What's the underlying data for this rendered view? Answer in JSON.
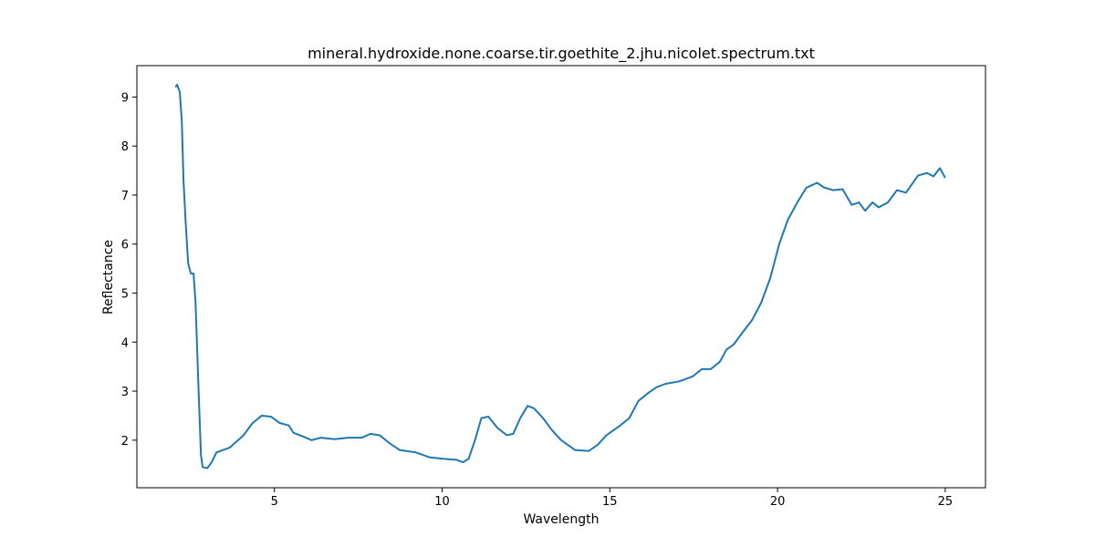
{
  "chart_data": {
    "type": "line",
    "title": "mineral.hydroxide.none.coarse.tir.goethite_2.jhu.nicolet.spectrum.txt",
    "x_label": "Wavelength",
    "y_label": "Reflectance",
    "xlim": [
      0.9,
      26.2
    ],
    "ylim": [
      1.03,
      9.64
    ],
    "xticks": [
      5,
      10,
      15,
      20,
      25
    ],
    "yticks": [
      2,
      3,
      4,
      5,
      6,
      7,
      8,
      9
    ],
    "color": "#1f77b4",
    "x": [
      2.05,
      2.1,
      2.18,
      2.24,
      2.29,
      2.35,
      2.43,
      2.51,
      2.59,
      2.65,
      2.73,
      2.81,
      2.86,
      3.0,
      3.13,
      3.27,
      3.67,
      4.08,
      4.35,
      4.62,
      4.9,
      5.16,
      5.43,
      5.57,
      5.84,
      6.11,
      6.38,
      6.79,
      7.19,
      7.6,
      7.87,
      8.14,
      8.41,
      8.73,
      9.22,
      9.63,
      10.03,
      10.43,
      10.62,
      10.79,
      10.98,
      11.17,
      11.38,
      11.65,
      11.93,
      12.12,
      12.33,
      12.55,
      12.74,
      13.01,
      13.28,
      13.55,
      13.96,
      14.37,
      14.63,
      14.9,
      15.31,
      15.58,
      15.85,
      16.12,
      16.39,
      16.66,
      17.07,
      17.47,
      17.74,
      18.01,
      18.28,
      18.48,
      18.69,
      18.96,
      19.24,
      19.51,
      19.78,
      20.05,
      20.31,
      20.59,
      20.86,
      21.18,
      21.4,
      21.66,
      21.94,
      22.21,
      22.43,
      22.61,
      22.83,
      23.02,
      23.29,
      23.56,
      23.83,
      24.19,
      24.46,
      24.65,
      24.84,
      25.0
    ],
    "values": [
      9.2,
      9.25,
      9.1,
      8.5,
      7.3,
      6.5,
      5.6,
      5.4,
      5.4,
      4.8,
      3.2,
      1.7,
      1.45,
      1.43,
      1.55,
      1.75,
      1.85,
      2.1,
      2.35,
      2.5,
      2.48,
      2.35,
      2.3,
      2.15,
      2.08,
      2.0,
      2.05,
      2.02,
      2.05,
      2.05,
      2.13,
      2.1,
      1.95,
      1.8,
      1.75,
      1.65,
      1.62,
      1.6,
      1.55,
      1.62,
      2.0,
      2.45,
      2.48,
      2.25,
      2.1,
      2.13,
      2.45,
      2.7,
      2.65,
      2.45,
      2.2,
      2.0,
      1.8,
      1.78,
      1.9,
      2.1,
      2.3,
      2.45,
      2.8,
      2.95,
      3.08,
      3.15,
      3.2,
      3.3,
      3.45,
      3.45,
      3.6,
      3.85,
      3.95,
      4.2,
      4.45,
      4.8,
      5.3,
      6.0,
      6.5,
      6.85,
      7.15,
      7.25,
      7.15,
      7.1,
      7.12,
      6.8,
      6.85,
      6.68,
      6.85,
      6.75,
      6.85,
      7.1,
      7.05,
      7.4,
      7.45,
      7.38,
      7.55,
      7.35
    ]
  }
}
